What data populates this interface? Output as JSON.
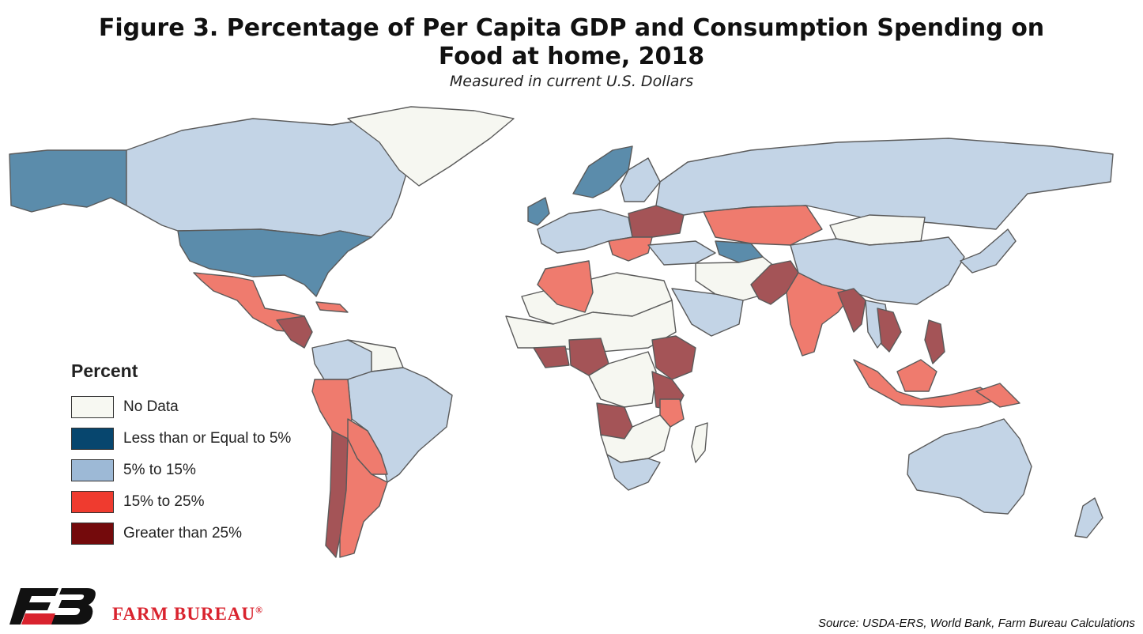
{
  "title_line1": "Figure 3. Percentage of Per Capita GDP and Consumption Spending on",
  "title_line2": "Food at home, 2018",
  "subtitle": "Measured in current U.S. Dollars",
  "legend": {
    "title": "Percent",
    "items": [
      {
        "label": "No Data",
        "color": "#f7f8f2"
      },
      {
        "label": "Less than or Equal to 5%",
        "color": "#07466e"
      },
      {
        "label": "5% to 15%",
        "color": "#9db9d6"
      },
      {
        "label": "15% to 25%",
        "color": "#ef3b2f"
      },
      {
        "label": "Greater than 25%",
        "color": "#740a0c"
      }
    ]
  },
  "map_colors": {
    "no_data": "#f6f7f1",
    "le5": "#5b8cab",
    "r5_15": "#c3d4e6",
    "r15_25": "#ef7b6e",
    "gt25": "#a45457"
  },
  "brand": "FARM BUREAU",
  "brand_mark": "®",
  "brand_color": "#d9232e",
  "source": "Source: USDA-ERS, World Bank, Farm Bureau Calculations"
}
